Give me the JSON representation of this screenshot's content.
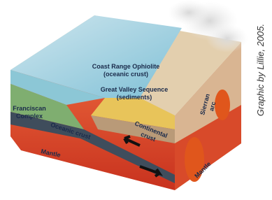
{
  "labels": [
    {
      "lines": [
        "Coast Range Ophiolite",
        "(oceanic crust)"
      ]
    },
    {
      "lines": [
        "Franciscan",
        "Complex"
      ]
    },
    {
      "lines": [
        "Great Valley Sequence",
        "(sediments)"
      ]
    },
    {
      "lines": [
        "Oceanic crust"
      ]
    },
    {
      "lines": [
        "Continental",
        "crust"
      ]
    },
    {
      "lines": [
        "Sierran",
        "arc"
      ]
    },
    {
      "lines": [
        "Mantle"
      ]
    },
    {
      "lines": [
        "Mantle"
      ]
    }
  ],
  "credit": "Graphic by Lillie, 2005."
}
